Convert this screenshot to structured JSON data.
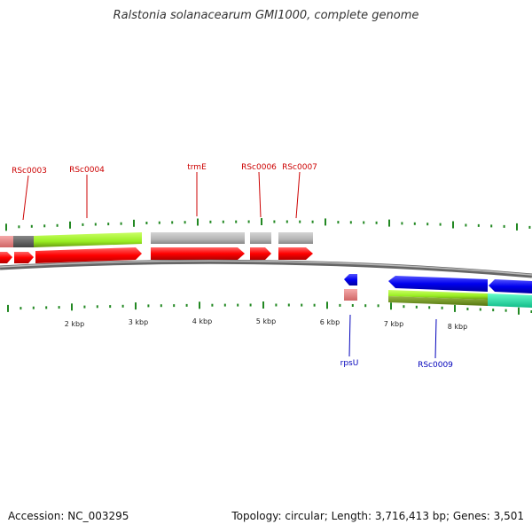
{
  "title": "Ralstonia solanacearum GMI1000, complete genome",
  "footer": {
    "accession": "Accession: NC_003295",
    "topology": "Topology: circular; Length: 3,716,413 bp; Genes: 3,501"
  },
  "scale_labels": [
    "2 kbp",
    "3 kbp",
    "4 kbp",
    "5 kbp",
    "6 kbp",
    "7 kbp",
    "8 kbp"
  ],
  "genes_forward": [
    {
      "label": "RSc0003",
      "color": "#cc0000"
    },
    {
      "label": "RSc0004",
      "color": "#cc0000"
    },
    {
      "label": "trmE",
      "color": "#cc0000"
    },
    {
      "label": "RSc0006",
      "color": "#cc0000"
    },
    {
      "label": "RSc0007",
      "color": "#cc0000"
    }
  ],
  "genes_reverse": [
    {
      "label": "rpsU",
      "color": "#0000bb"
    },
    {
      "label": "RSc0009",
      "color": "#0000bb"
    }
  ],
  "colors": {
    "forward_cds": "#ff1a1a",
    "reverse_cds": "#1a1aff",
    "forward_label": "#cc0000",
    "reverse_label": "#0000bb",
    "cog_green": "#aaff33",
    "cog_gray": "#bbbbbb",
    "cog_pink": "#ee8888",
    "cog_teal": "#22eeaa",
    "backbone": "#888888",
    "tick": "#228822"
  }
}
